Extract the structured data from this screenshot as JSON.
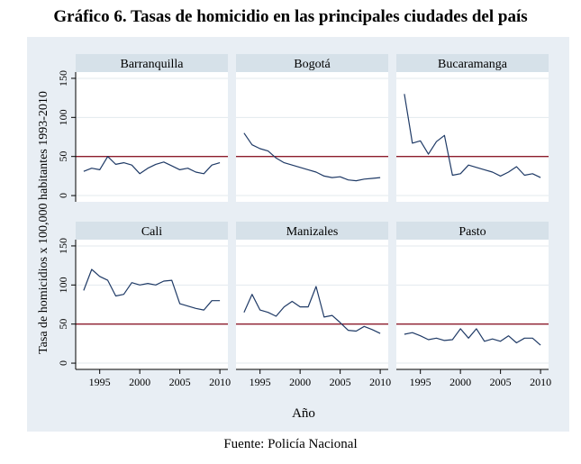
{
  "title": "Gráfico 6. Tasas de homicidio en las principales ciudades del país",
  "source": "Fuente: Policía Nacional",
  "chart_data": {
    "type": "line",
    "layout": "small-multiples 2x3",
    "xlabel": "Año",
    "ylabel": "Tasa de homicidios x 100,000 habitantes 1993-2010",
    "xlim": [
      1992,
      2011
    ],
    "ylim": [
      -8,
      158
    ],
    "xticks": [
      1995,
      2000,
      2005,
      2010
    ],
    "yticks": [
      0,
      50,
      100,
      150
    ],
    "reference_line": 50,
    "colors": {
      "background": "#e8eef4",
      "strip": "#d6e1e9",
      "series": "#1f3a66",
      "reference": "#8c1c2c"
    },
    "x": [
      1993,
      1994,
      1995,
      1996,
      1997,
      1998,
      1999,
      2000,
      2001,
      2002,
      2003,
      2004,
      2005,
      2006,
      2007,
      2008,
      2009,
      2010
    ],
    "panels": [
      {
        "name": "Barranquilla",
        "values": [
          31,
          35,
          33,
          50,
          40,
          42,
          39,
          28,
          35,
          40,
          43,
          38,
          33,
          35,
          30,
          28,
          39,
          42
        ]
      },
      {
        "name": "Bogotá",
        "values": [
          80,
          65,
          60,
          57,
          48,
          42,
          39,
          36,
          33,
          30,
          25,
          23,
          24,
          20,
          19,
          21,
          22,
          23
        ]
      },
      {
        "name": "Bucaramanga",
        "values": [
          130,
          67,
          70,
          53,
          69,
          77,
          26,
          28,
          39,
          36,
          33,
          30,
          25,
          30,
          37,
          26,
          28,
          23
        ]
      },
      {
        "name": "Cali",
        "values": [
          93,
          120,
          111,
          106,
          86,
          88,
          103,
          100,
          102,
          100,
          105,
          106,
          76,
          73,
          70,
          68,
          80,
          80
        ]
      },
      {
        "name": "Manizales",
        "values": [
          65,
          88,
          68,
          65,
          60,
          72,
          79,
          72,
          72,
          98,
          59,
          61,
          52,
          42,
          41,
          47,
          43,
          38
        ]
      },
      {
        "name": "Pasto",
        "values": [
          37,
          39,
          35,
          30,
          32,
          29,
          30,
          44,
          32,
          44,
          28,
          31,
          28,
          35,
          26,
          32,
          32,
          23
        ]
      }
    ]
  }
}
